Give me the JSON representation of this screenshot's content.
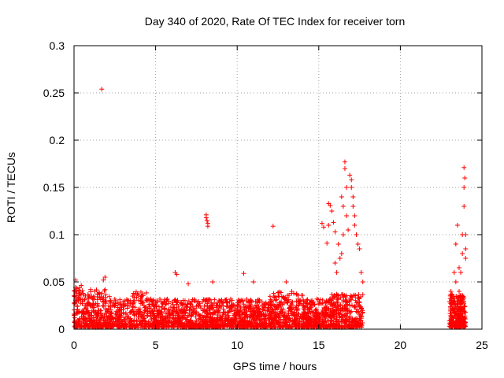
{
  "chart_data": {
    "type": "scatter",
    "title": "Day 340 of 2020, Rate Of TEC Index for receiver torn",
    "xlabel": "GPS time / hours",
    "ylabel": "ROTI / TECUs",
    "xlim": [
      0,
      25
    ],
    "ylim": [
      0,
      0.3
    ],
    "xticks": [
      0,
      5,
      10,
      15,
      20,
      25
    ],
    "yticks": [
      0,
      0.05,
      0.1,
      0.15,
      0.2,
      0.25,
      0.3
    ],
    "xtick_labels": [
      "0",
      "5",
      "10",
      "15",
      "20",
      "25"
    ],
    "ytick_labels": [
      "0",
      "0.05",
      "0.1",
      "0.15",
      "0.2",
      "0.25",
      "0.3"
    ],
    "grid": true,
    "marker": "+",
    "color": "#ff0000",
    "series": [
      {
        "points": [
          [
            1.7,
            0.254
          ],
          [
            8.1,
            0.121
          ],
          [
            8.1,
            0.118
          ],
          [
            8.15,
            0.115
          ],
          [
            8.2,
            0.112
          ],
          [
            8.2,
            0.109
          ],
          [
            12.2,
            0.109
          ],
          [
            6.2,
            0.06
          ],
          [
            6.3,
            0.058
          ],
          [
            10.4,
            0.059
          ],
          [
            11.0,
            0.05
          ],
          [
            1.9,
            0.055
          ],
          [
            1.8,
            0.052
          ],
          [
            7.0,
            0.048
          ],
          [
            8.5,
            0.05
          ],
          [
            13.0,
            0.05
          ],
          [
            0.1,
            0.052
          ],
          [
            15.2,
            0.112
          ],
          [
            15.3,
            0.108
          ],
          [
            15.5,
            0.091
          ],
          [
            15.6,
            0.11
          ],
          [
            15.6,
            0.133
          ],
          [
            15.7,
            0.131
          ],
          [
            15.8,
            0.125
          ],
          [
            15.9,
            0.113
          ],
          [
            16.0,
            0.103
          ],
          [
            16.2,
            0.09
          ],
          [
            16.3,
            0.075
          ],
          [
            16.4,
            0.14
          ],
          [
            16.5,
            0.13
          ],
          [
            16.6,
            0.177
          ],
          [
            16.6,
            0.17
          ],
          [
            16.7,
            0.15
          ],
          [
            16.7,
            0.12
          ],
          [
            16.8,
            0.105
          ],
          [
            16.9,
            0.163
          ],
          [
            17.0,
            0.158
          ],
          [
            17.0,
            0.15
          ],
          [
            17.1,
            0.14
          ],
          [
            17.1,
            0.13
          ],
          [
            17.2,
            0.12
          ],
          [
            17.2,
            0.11
          ],
          [
            17.3,
            0.1
          ],
          [
            17.4,
            0.09
          ],
          [
            17.5,
            0.085
          ],
          [
            17.6,
            0.06
          ],
          [
            17.7,
            0.05
          ],
          [
            16.0,
            0.07
          ],
          [
            16.1,
            0.06
          ],
          [
            16.4,
            0.08
          ],
          [
            16.5,
            0.1
          ],
          [
            23.1,
            0.04
          ],
          [
            23.3,
            0.06
          ],
          [
            23.4,
            0.09
          ],
          [
            23.5,
            0.11
          ],
          [
            23.6,
            0.065
          ],
          [
            23.7,
            0.06
          ],
          [
            23.8,
            0.08
          ],
          [
            23.8,
            0.1
          ],
          [
            23.9,
            0.13
          ],
          [
            23.9,
            0.15
          ],
          [
            23.95,
            0.16
          ],
          [
            23.9,
            0.171
          ],
          [
            24.0,
            0.1
          ],
          [
            24.0,
            0.085
          ],
          [
            24.0,
            0.075
          ],
          [
            23.4,
            0.05
          ],
          [
            23.6,
            0.04
          ]
        ]
      }
    ]
  }
}
